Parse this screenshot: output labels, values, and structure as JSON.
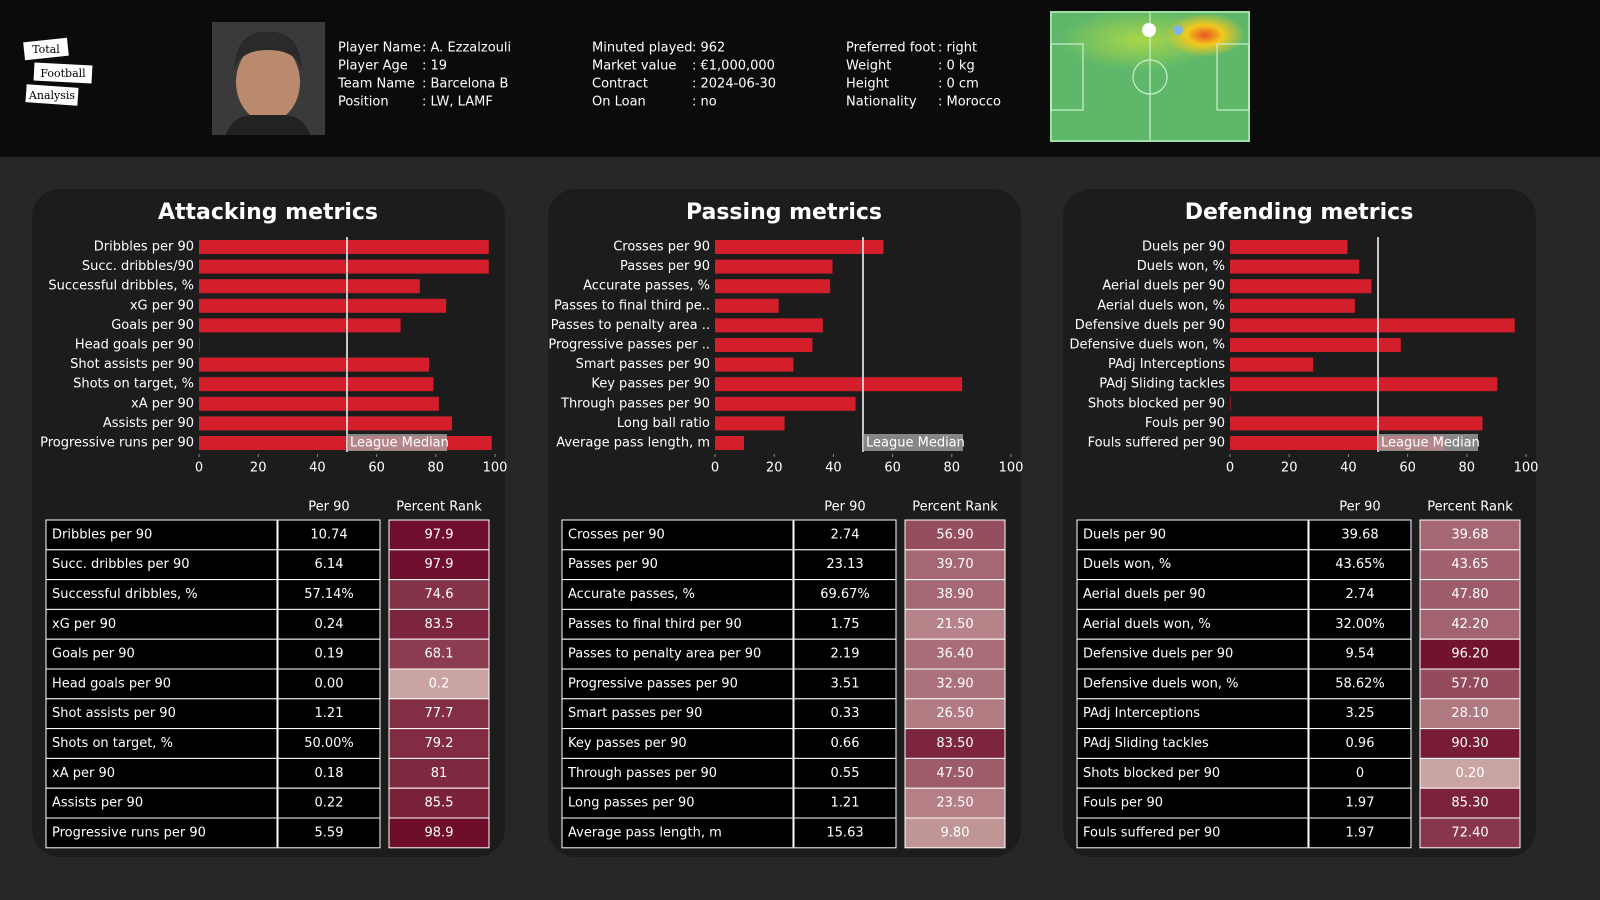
{
  "header": {
    "logo": [
      "Total",
      "Football",
      "Analysis"
    ],
    "info_columns": [
      [
        {
          "label": "Player Name",
          "value": ": A. Ezzalzouli"
        },
        {
          "label": "Player Age",
          "value": ": 19"
        },
        {
          "label": "Team Name",
          "value": ": Barcelona B"
        },
        {
          "label": "Position",
          "value": ": LW, LAMF"
        }
      ],
      [
        {
          "label": "Minuted played",
          "value": ": 962"
        },
        {
          "label": "Market value",
          "value": ": €1,000,000"
        },
        {
          "label": "Contract",
          "value": ": 2024-06-30"
        },
        {
          "label": "On Loan",
          "value": ": no"
        }
      ],
      [
        {
          "label": "Preferred foot",
          "value": ": right"
        },
        {
          "label": "Weight",
          "value": ": 0 kg"
        },
        {
          "label": "Height",
          "value": ": 0 cm"
        },
        {
          "label": "Nationality",
          "value": ": Morocco"
        }
      ]
    ]
  },
  "chart_data": [
    {
      "type": "bar",
      "orientation": "horizontal",
      "title": "Attacking metrics",
      "color": "#d21f2b",
      "categories": [
        "Dribbles per 90",
        "Succ. dribbles/90",
        "Successful dribbles, %",
        "xG per 90",
        "Goals per 90",
        "Head goals per 90",
        "Shot assists per 90",
        "Shots on target, %",
        "xA per 90",
        "Assists per 90",
        "Progressive runs per 90"
      ],
      "values": [
        97.9,
        97.9,
        74.6,
        83.5,
        68.1,
        0.2,
        77.7,
        79.2,
        81,
        85.5,
        98.9
      ],
      "xlim": [
        0,
        100
      ],
      "xticks": [
        0,
        20,
        40,
        60,
        80,
        100
      ],
      "median": 50,
      "median_label": "League Median"
    },
    {
      "type": "bar",
      "orientation": "horizontal",
      "title": "Passing metrics",
      "color": "#d21f2b",
      "categories": [
        "Crosses per 90",
        "Passes per 90",
        "Accurate passes, %",
        "Passes to final third pe..",
        "Passes to penalty area ..",
        "Progressive passes per ..",
        "Smart passes per 90",
        "Key passes per 90",
        "Through passes per 90",
        "Long ball ratio",
        "Average pass length, m"
      ],
      "values": [
        56.9,
        39.7,
        38.9,
        21.5,
        36.4,
        32.9,
        26.5,
        83.5,
        47.5,
        23.5,
        9.8
      ],
      "xlim": [
        0,
        100
      ],
      "xticks": [
        0,
        20,
        40,
        60,
        80,
        100
      ],
      "median": 50,
      "median_label": "League Median"
    },
    {
      "type": "bar",
      "orientation": "horizontal",
      "title": "Defending metrics",
      "color": "#d21f2b",
      "categories": [
        "Duels per 90",
        "Duels won, %",
        "Aerial duels per 90",
        "Aerial duels won, %",
        "Defensive duels per 90",
        "Defensive duels won, %",
        "PAdj Interceptions",
        "PAdj Sliding tackles",
        "Shots blocked per 90",
        "Fouls per 90",
        "Fouls suffered per 90"
      ],
      "values": [
        39.68,
        43.65,
        47.8,
        42.2,
        96.2,
        57.7,
        28.1,
        90.3,
        0.2,
        85.3,
        72.4
      ],
      "xlim": [
        0,
        100
      ],
      "xticks": [
        0,
        20,
        40,
        60,
        80,
        100
      ],
      "median": 50,
      "median_label": "League Median"
    }
  ],
  "tables": [
    {
      "columns": [
        "Per 90",
        "Percent Rank"
      ],
      "rows": [
        [
          "Dribbles per 90",
          "10.74",
          "97.9"
        ],
        [
          "Succ. dribbles per 90",
          "6.14",
          "97.9"
        ],
        [
          "Successful dribbles, %",
          "57.14%",
          "74.6"
        ],
        [
          "xG per 90",
          "0.24",
          "83.5"
        ],
        [
          "Goals per 90",
          "0.19",
          "68.1"
        ],
        [
          "Head goals per 90",
          "0.00",
          "0.2"
        ],
        [
          "Shot assists per 90",
          "1.21",
          "77.7"
        ],
        [
          "Shots on target, %",
          "50.00%",
          "79.2"
        ],
        [
          "xA per 90",
          "0.18",
          "81"
        ],
        [
          "Assists per 90",
          "0.22",
          "85.5"
        ],
        [
          "Progressive runs per 90",
          "5.59",
          "98.9"
        ]
      ]
    },
    {
      "columns": [
        "Per 90",
        "Percent Rank"
      ],
      "rows": [
        [
          "Crosses per 90",
          "2.74",
          "56.90"
        ],
        [
          "Passes per 90",
          "23.13",
          "39.70"
        ],
        [
          "Accurate passes, %",
          "69.67%",
          "38.90"
        ],
        [
          "Passes to final third per 90",
          "1.75",
          "21.50"
        ],
        [
          "Passes to penalty area per 90",
          "2.19",
          "36.40"
        ],
        [
          "Progressive passes per 90",
          "3.51",
          "32.90"
        ],
        [
          "Smart passes per 90",
          "0.33",
          "26.50"
        ],
        [
          "Key passes per 90",
          "0.66",
          "83.50"
        ],
        [
          "Through passes per 90",
          "0.55",
          "47.50"
        ],
        [
          "Long passes per 90",
          "1.21",
          "23.50"
        ],
        [
          "Average pass length, m",
          "15.63",
          "9.80"
        ]
      ]
    },
    {
      "columns": [
        "Per 90",
        "Percent Rank"
      ],
      "rows": [
        [
          "Duels per 90",
          "39.68",
          "39.68"
        ],
        [
          "Duels won, %",
          "43.65%",
          "43.65"
        ],
        [
          "Aerial duels per 90",
          "2.74",
          "47.80"
        ],
        [
          "Aerial duels won, %",
          "32.00%",
          "42.20"
        ],
        [
          "Defensive duels per 90",
          "9.54",
          "96.20"
        ],
        [
          "Defensive duels won, %",
          "58.62%",
          "57.70"
        ],
        [
          "PAdj Interceptions",
          "3.25",
          "28.10"
        ],
        [
          "PAdj Sliding tackles",
          "0.96",
          "90.30"
        ],
        [
          "Shots blocked per 90",
          "0",
          "0.20"
        ],
        [
          "Fouls per 90",
          "1.97",
          "85.30"
        ],
        [
          "Fouls suffered per 90",
          "1.97",
          "72.40"
        ]
      ]
    }
  ]
}
